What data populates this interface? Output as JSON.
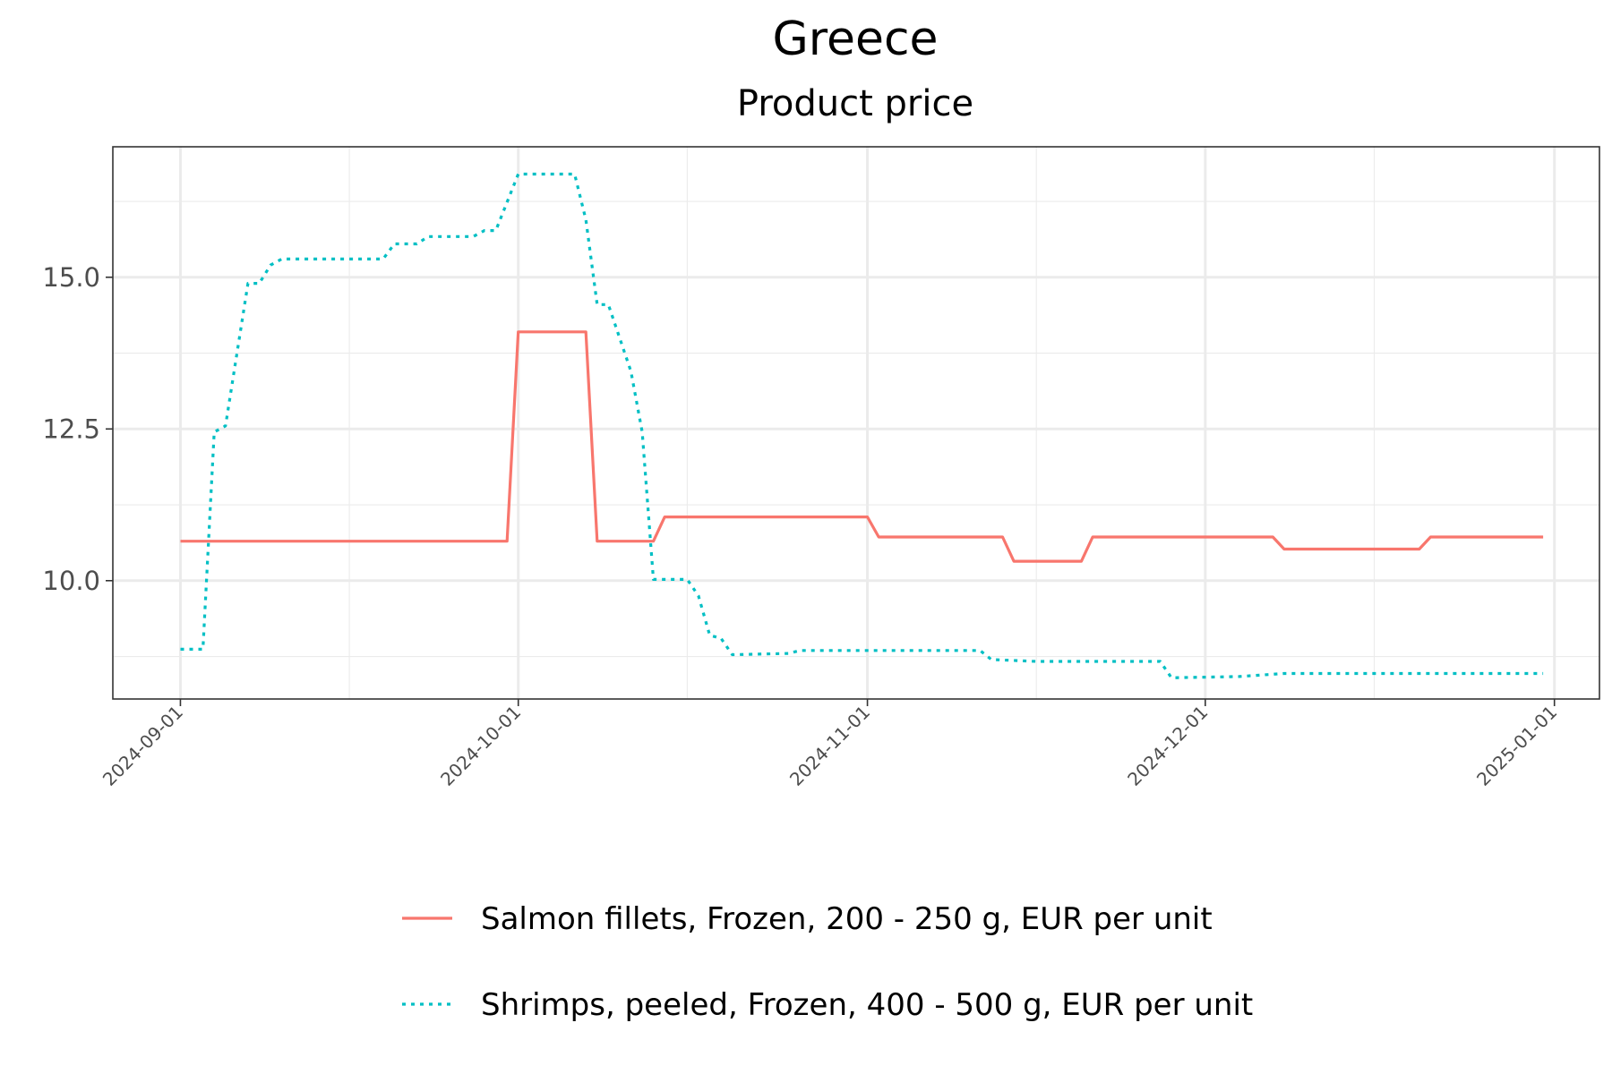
{
  "chart_data": {
    "type": "line",
    "title": "Greece",
    "subtitle": "Product price",
    "xlabel": "",
    "ylabel": "",
    "x_axis": "date",
    "xlim": [
      "2024-08-26",
      "2025-01-05"
    ],
    "ylim": [
      8.05,
      17.15
    ],
    "y_ticks": [
      10.0,
      12.5,
      15.0
    ],
    "y_tick_labels": [
      "10.0",
      "12.5",
      "15.0"
    ],
    "y_minor_ticks": [
      8.75,
      11.25,
      13.75,
      16.25
    ],
    "x_ticks": [
      "2024-09-01",
      "2024-10-01",
      "2024-11-01",
      "2024-12-01",
      "2025-01-01"
    ],
    "x_tick_labels": [
      "2024-09-01",
      "2024-10-01",
      "2024-11-01",
      "2024-12-01",
      "2025-01-01"
    ],
    "x_minor_ticks": [
      "2024-09-16",
      "2024-10-16",
      "2024-11-16",
      "2024-12-16"
    ],
    "grid": true,
    "legend_position": "bottom",
    "series": [
      {
        "name": "Salmon fillets, Frozen, 200 - 250 g, EUR per unit",
        "color": "#F8766D",
        "dash": "solid",
        "points": [
          {
            "x": "2024-09-01",
            "y": 10.65
          },
          {
            "x": "2024-09-30",
            "y": 10.65
          },
          {
            "x": "2024-10-01",
            "y": 14.1
          },
          {
            "x": "2024-10-07",
            "y": 14.1
          },
          {
            "x": "2024-10-08",
            "y": 10.65
          },
          {
            "x": "2024-10-13",
            "y": 10.65
          },
          {
            "x": "2024-10-14",
            "y": 11.05
          },
          {
            "x": "2024-11-01",
            "y": 11.05
          },
          {
            "x": "2024-11-02",
            "y": 10.72
          },
          {
            "x": "2024-11-13",
            "y": 10.72
          },
          {
            "x": "2024-11-14",
            "y": 10.32
          },
          {
            "x": "2024-11-20",
            "y": 10.32
          },
          {
            "x": "2024-11-21",
            "y": 10.72
          },
          {
            "x": "2024-12-07",
            "y": 10.72
          },
          {
            "x": "2024-12-08",
            "y": 10.52
          },
          {
            "x": "2024-12-20",
            "y": 10.52
          },
          {
            "x": "2024-12-21",
            "y": 10.72
          },
          {
            "x": "2024-12-31",
            "y": 10.72
          }
        ]
      },
      {
        "name": "Shrimps, peeled, Frozen, 400 - 500 g, EUR per unit",
        "color": "#00BFC4",
        "dash": "dotted",
        "points": [
          {
            "x": "2024-09-01",
            "y": 8.87
          },
          {
            "x": "2024-09-03",
            "y": 8.87
          },
          {
            "x": "2024-09-04",
            "y": 12.45
          },
          {
            "x": "2024-09-05",
            "y": 12.55
          },
          {
            "x": "2024-09-07",
            "y": 14.9
          },
          {
            "x": "2024-09-08",
            "y": 14.9
          },
          {
            "x": "2024-09-09",
            "y": 15.2
          },
          {
            "x": "2024-09-10",
            "y": 15.3
          },
          {
            "x": "2024-09-19",
            "y": 15.3
          },
          {
            "x": "2024-09-20",
            "y": 15.55
          },
          {
            "x": "2024-09-22",
            "y": 15.55
          },
          {
            "x": "2024-09-23",
            "y": 15.67
          },
          {
            "x": "2024-09-27",
            "y": 15.67
          },
          {
            "x": "2024-09-28",
            "y": 15.77
          },
          {
            "x": "2024-09-29",
            "y": 15.77
          },
          {
            "x": "2024-10-01",
            "y": 16.7
          },
          {
            "x": "2024-10-06",
            "y": 16.7
          },
          {
            "x": "2024-10-07",
            "y": 15.95
          },
          {
            "x": "2024-10-08",
            "y": 14.55
          },
          {
            "x": "2024-10-09",
            "y": 14.55
          },
          {
            "x": "2024-10-11",
            "y": 13.45
          },
          {
            "x": "2024-10-12",
            "y": 12.45
          },
          {
            "x": "2024-10-13",
            "y": 10.02
          },
          {
            "x": "2024-10-16",
            "y": 10.02
          },
          {
            "x": "2024-10-17",
            "y": 9.75
          },
          {
            "x": "2024-10-18",
            "y": 9.1
          },
          {
            "x": "2024-10-19",
            "y": 9.05
          },
          {
            "x": "2024-10-20",
            "y": 8.78
          },
          {
            "x": "2024-10-25",
            "y": 8.8
          },
          {
            "x": "2024-10-26",
            "y": 8.85
          },
          {
            "x": "2024-11-11",
            "y": 8.85
          },
          {
            "x": "2024-11-12",
            "y": 8.7
          },
          {
            "x": "2024-11-16",
            "y": 8.67
          },
          {
            "x": "2024-11-27",
            "y": 8.67
          },
          {
            "x": "2024-11-28",
            "y": 8.4
          },
          {
            "x": "2024-12-04",
            "y": 8.42
          },
          {
            "x": "2024-12-08",
            "y": 8.47
          },
          {
            "x": "2024-12-31",
            "y": 8.47
          }
        ]
      }
    ]
  }
}
